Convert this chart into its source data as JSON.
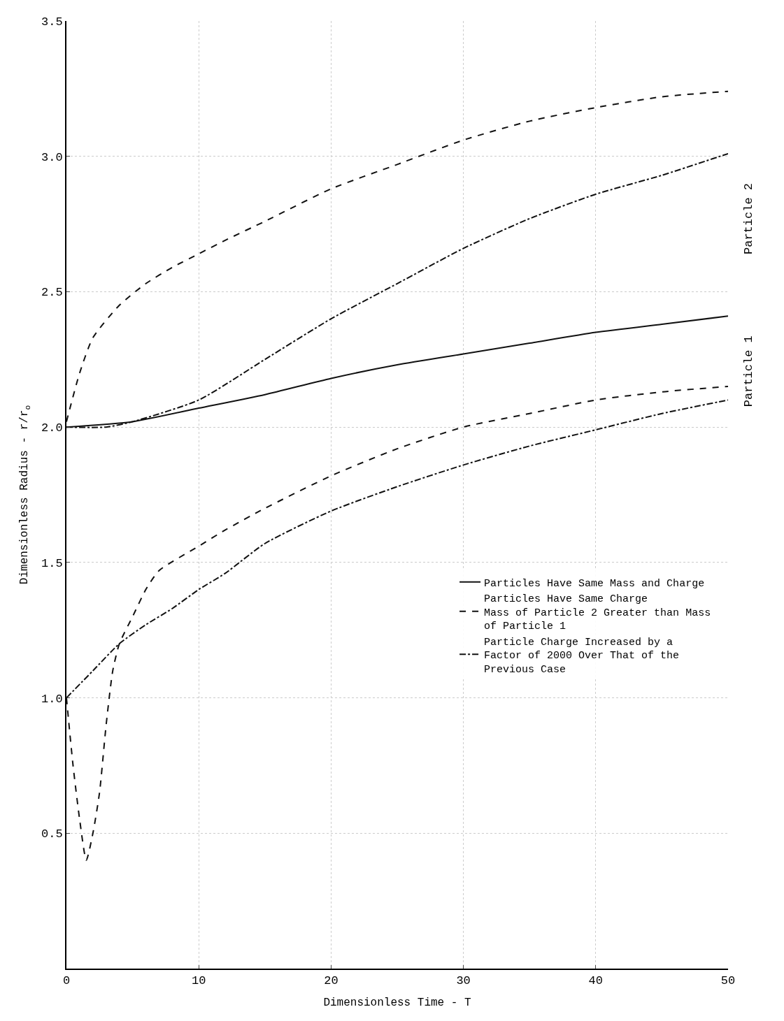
{
  "chart_data": {
    "type": "line",
    "xlabel": "Dimensionless Time - T",
    "ylabel": "Dimensionless Radius - r/r$_{o}$",
    "xlim": [
      0,
      50
    ],
    "xticks": [
      0,
      10,
      20,
      30,
      40,
      50
    ],
    "ylim": [
      0,
      3.5
    ],
    "yticks": [
      {
        "value": 0.5,
        "label": "0.5"
      },
      {
        "value": 1,
        "label": "1.0"
      },
      {
        "value": 1.5,
        "label": "1.5"
      },
      {
        "value": 2,
        "label": "2.0"
      },
      {
        "value": 2.5,
        "label": "2.5"
      },
      {
        "value": 3,
        "label": "3.0"
      },
      {
        "value": 3.5,
        "label": "3.5"
      }
    ],
    "grid": true,
    "legend": "right",
    "series": [
      {
        "name": "Particles Have Same Mass and Charge",
        "color": "#111111",
        "line_style": "solid",
        "x": [
          0,
          5,
          10,
          15,
          20,
          25,
          30,
          35,
          40,
          45,
          50
        ],
        "values": [
          2.0,
          2.02,
          2.07,
          2.12,
          2.18,
          2.23,
          2.27,
          2.31,
          2.35,
          2.38,
          2.41
        ]
      },
      {
        "name": "Particles Have Same Charge\nMass of Particle 2 Greater than Mass\nof Particle 1",
        "color": "#111111",
        "line_style": "dashed",
        "x": [
          0,
          1,
          2,
          4,
          6,
          8,
          10,
          12,
          15,
          20,
          25,
          30,
          35,
          40,
          45,
          50
        ],
        "values": [
          2.02,
          2.2,
          2.33,
          2.45,
          2.53,
          2.59,
          2.64,
          2.69,
          2.76,
          2.88,
          2.97,
          3.06,
          3.13,
          3.18,
          3.22,
          3.24
        ]
      },
      {
        "color": "#111111",
        "line_style": "dashed",
        "x": [
          0,
          0.5,
          1,
          1.5,
          2,
          2.5,
          3,
          3.5,
          4,
          5,
          6,
          7,
          10,
          12,
          15,
          20,
          25,
          30,
          35,
          40,
          45,
          50
        ],
        "values": [
          1.0,
          0.75,
          0.55,
          0.4,
          0.5,
          0.65,
          0.9,
          1.1,
          1.2,
          1.3,
          1.4,
          1.47,
          1.56,
          1.62,
          1.7,
          1.82,
          1.92,
          2.0,
          2.05,
          2.1,
          2.13,
          2.15
        ]
      },
      {
        "name": "Particle Charge Increased by a\nFactor of 2000 Over That of the\nPrevious Case",
        "color": "#111111",
        "line_style": "dashdot",
        "x": [
          0,
          3,
          5,
          10,
          15,
          20,
          25,
          30,
          35,
          40,
          45,
          50
        ],
        "values": [
          2.0,
          2.0,
          2.02,
          2.1,
          2.25,
          2.4,
          2.53,
          2.66,
          2.77,
          2.86,
          2.93,
          3.01
        ]
      },
      {
        "color": "#111111",
        "line_style": "dashdot",
        "x": [
          0,
          2,
          4,
          6,
          8,
          10,
          12,
          15,
          20,
          25,
          30,
          35,
          40,
          45,
          50
        ],
        "values": [
          1.0,
          1.1,
          1.2,
          1.27,
          1.33,
          1.4,
          1.46,
          1.57,
          1.69,
          1.78,
          1.86,
          1.93,
          1.99,
          2.05,
          2.1
        ]
      }
    ],
    "annotations": [
      "Particle 2",
      "Particle 1"
    ]
  }
}
